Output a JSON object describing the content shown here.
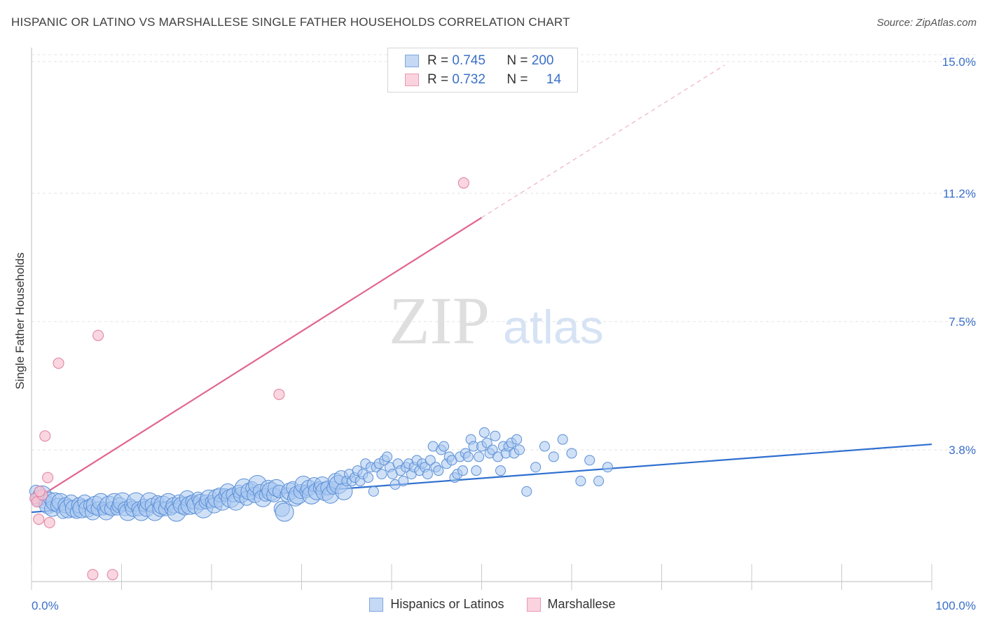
{
  "title": "HISPANIC OR LATINO VS MARSHALLESE SINGLE FATHER HOUSEHOLDS CORRELATION CHART",
  "source": "Source: ZipAtlas.com",
  "watermark": {
    "zip": "ZIP",
    "atlas": "atlas"
  },
  "colors": {
    "blue_fill": "#a9c8f0",
    "blue_stroke": "#5b8fd6",
    "blue_line": "#2f6fd0",
    "pink_fill": "#f6c4d3",
    "pink_stroke": "#e07f9f",
    "pink_line": "#e0658f",
    "tick_label": "#3a6fc9",
    "grid": "#e3e3e3"
  },
  "legend": {
    "rows": [
      {
        "r_label": "R =",
        "r_value": "0.745",
        "n_label": "N =",
        "n_value": "200"
      },
      {
        "r_label": "R =",
        "r_value": "0.732",
        "n_label": "N =",
        "n_value": "14"
      }
    ]
  },
  "bottom_legend": [
    "Hispanics or Latinos",
    "Marshallese"
  ],
  "chart_data": {
    "type": "scatter",
    "title": "HISPANIC OR LATINO VS MARSHALLESE SINGLE FATHER HOUSEHOLDS CORRELATION CHART",
    "xlabel": "",
    "ylabel": "Single Father Households",
    "xlim": [
      0,
      100
    ],
    "ylim": [
      0,
      15.2
    ],
    "x_tick_labels": [
      "0.0%",
      "100.0%"
    ],
    "y_ticks": [
      3.8,
      7.5,
      11.2,
      15.0
    ],
    "y_tick_labels": [
      "3.8%",
      "7.5%",
      "11.2%",
      "15.0%"
    ],
    "grid": true,
    "legend_position": "top-center",
    "series": [
      {
        "name": "Hispanics or Latinos",
        "R": 0.745,
        "N": 200,
        "trend": {
          "x": [
            0,
            100
          ],
          "y": [
            2.0,
            3.96
          ]
        },
        "points": [
          [
            0.5,
            2.6
          ],
          [
            0.8,
            2.4
          ],
          [
            1.2,
            2.5
          ],
          [
            1.5,
            2.3
          ],
          [
            1.8,
            2.2
          ],
          [
            2.0,
            2.4
          ],
          [
            2.3,
            2.1
          ],
          [
            2.6,
            2.3
          ],
          [
            2.9,
            2.2
          ],
          [
            3.2,
            2.3
          ],
          [
            3.5,
            2.0
          ],
          [
            3.8,
            2.2
          ],
          [
            4.1,
            2.1
          ],
          [
            4.4,
            2.3
          ],
          [
            4.7,
            2.1
          ],
          [
            5.0,
            2.0
          ],
          [
            5.3,
            2.2
          ],
          [
            5.6,
            2.1
          ],
          [
            5.9,
            2.3
          ],
          [
            6.2,
            2.1
          ],
          [
            6.5,
            2.2
          ],
          [
            6.8,
            2.0
          ],
          [
            7.1,
            2.2
          ],
          [
            7.4,
            2.1
          ],
          [
            7.7,
            2.3
          ],
          [
            8.0,
            2.1
          ],
          [
            8.3,
            2.0
          ],
          [
            8.6,
            2.2
          ],
          [
            8.9,
            2.1
          ],
          [
            9.2,
            2.3
          ],
          [
            9.5,
            2.1
          ],
          [
            9.8,
            2.2
          ],
          [
            10.1,
            2.3
          ],
          [
            10.4,
            2.1
          ],
          [
            10.7,
            2.0
          ],
          [
            11.0,
            2.2
          ],
          [
            11.3,
            2.1
          ],
          [
            11.6,
            2.3
          ],
          [
            11.9,
            2.1
          ],
          [
            12.2,
            2.0
          ],
          [
            12.5,
            2.2
          ],
          [
            12.8,
            2.1
          ],
          [
            13.1,
            2.3
          ],
          [
            13.4,
            2.2
          ],
          [
            13.7,
            2.0
          ],
          [
            14.0,
            2.3
          ],
          [
            14.3,
            2.1
          ],
          [
            14.6,
            2.2
          ],
          [
            14.9,
            2.1
          ],
          [
            15.2,
            2.3
          ],
          [
            15.5,
            2.1
          ],
          [
            15.8,
            2.2
          ],
          [
            16.1,
            2.0
          ],
          [
            16.4,
            2.3
          ],
          [
            16.7,
            2.2
          ],
          [
            17.0,
            2.1
          ],
          [
            17.3,
            2.4
          ],
          [
            17.6,
            2.2
          ],
          [
            17.9,
            2.3
          ],
          [
            18.2,
            2.2
          ],
          [
            18.5,
            2.4
          ],
          [
            18.8,
            2.3
          ],
          [
            19.1,
            2.1
          ],
          [
            19.4,
            2.3
          ],
          [
            19.7,
            2.4
          ],
          [
            20.0,
            2.3
          ],
          [
            20.3,
            2.2
          ],
          [
            20.6,
            2.4
          ],
          [
            20.9,
            2.5
          ],
          [
            21.2,
            2.3
          ],
          [
            21.5,
            2.5
          ],
          [
            21.8,
            2.6
          ],
          [
            22.1,
            2.4
          ],
          [
            22.4,
            2.5
          ],
          [
            22.7,
            2.3
          ],
          [
            23.0,
            2.6
          ],
          [
            23.3,
            2.5
          ],
          [
            23.6,
            2.7
          ],
          [
            23.9,
            2.4
          ],
          [
            24.2,
            2.6
          ],
          [
            24.5,
            2.7
          ],
          [
            24.8,
            2.5
          ],
          [
            25.1,
            2.8
          ],
          [
            25.4,
            2.6
          ],
          [
            25.7,
            2.4
          ],
          [
            26.0,
            2.5
          ],
          [
            26.3,
            2.7
          ],
          [
            26.6,
            2.6
          ],
          [
            26.9,
            2.5
          ],
          [
            27.2,
            2.7
          ],
          [
            27.5,
            2.6
          ],
          [
            27.8,
            2.1
          ],
          [
            28.1,
            2.0
          ],
          [
            28.4,
            2.5
          ],
          [
            28.7,
            2.6
          ],
          [
            29.0,
            2.7
          ],
          [
            29.3,
            2.4
          ],
          [
            29.6,
            2.5
          ],
          [
            29.9,
            2.6
          ],
          [
            30.2,
            2.8
          ],
          [
            30.5,
            2.6
          ],
          [
            30.8,
            2.7
          ],
          [
            31.1,
            2.5
          ],
          [
            31.4,
            2.8
          ],
          [
            31.7,
            2.6
          ],
          [
            32.0,
            2.7
          ],
          [
            32.3,
            2.8
          ],
          [
            32.6,
            2.6
          ],
          [
            32.9,
            2.7
          ],
          [
            33.2,
            2.5
          ],
          [
            33.5,
            2.7
          ],
          [
            33.8,
            2.9
          ],
          [
            34.1,
            2.8
          ],
          [
            34.4,
            3.0
          ],
          [
            34.7,
            2.6
          ],
          [
            35.0,
            2.9
          ],
          [
            35.3,
            3.1
          ],
          [
            35.6,
            2.9
          ],
          [
            35.9,
            3.0
          ],
          [
            36.2,
            3.2
          ],
          [
            36.5,
            2.9
          ],
          [
            36.8,
            3.1
          ],
          [
            37.1,
            3.4
          ],
          [
            37.4,
            3.0
          ],
          [
            37.7,
            3.3
          ],
          [
            38.0,
            2.6
          ],
          [
            38.3,
            3.3
          ],
          [
            38.6,
            3.4
          ],
          [
            38.9,
            3.1
          ],
          [
            39.2,
            3.5
          ],
          [
            39.5,
            3.6
          ],
          [
            39.8,
            3.3
          ],
          [
            40.1,
            3.1
          ],
          [
            40.4,
            2.8
          ],
          [
            40.7,
            3.4
          ],
          [
            41.0,
            3.2
          ],
          [
            41.3,
            2.9
          ],
          [
            41.6,
            3.3
          ],
          [
            41.9,
            3.4
          ],
          [
            42.2,
            3.1
          ],
          [
            42.5,
            3.3
          ],
          [
            42.8,
            3.5
          ],
          [
            43.1,
            3.2
          ],
          [
            43.4,
            3.4
          ],
          [
            43.7,
            3.3
          ],
          [
            44.0,
            3.1
          ],
          [
            44.3,
            3.5
          ],
          [
            44.6,
            3.9
          ],
          [
            44.9,
            3.3
          ],
          [
            45.2,
            3.2
          ],
          [
            45.5,
            3.8
          ],
          [
            45.8,
            3.9
          ],
          [
            46.1,
            3.4
          ],
          [
            46.4,
            3.6
          ],
          [
            46.7,
            3.5
          ],
          [
            47.0,
            3.0
          ],
          [
            47.3,
            3.1
          ],
          [
            47.6,
            3.6
          ],
          [
            47.9,
            3.2
          ],
          [
            48.2,
            3.7
          ],
          [
            48.5,
            3.6
          ],
          [
            48.8,
            4.1
          ],
          [
            49.1,
            3.9
          ],
          [
            49.4,
            3.2
          ],
          [
            49.7,
            3.6
          ],
          [
            50.0,
            3.9
          ],
          [
            50.3,
            4.3
          ],
          [
            50.6,
            4.0
          ],
          [
            50.9,
            3.7
          ],
          [
            51.2,
            3.8
          ],
          [
            51.5,
            4.2
          ],
          [
            51.8,
            3.6
          ],
          [
            52.1,
            3.2
          ],
          [
            52.4,
            3.9
          ],
          [
            52.7,
            3.7
          ],
          [
            53.0,
            3.9
          ],
          [
            53.3,
            4.0
          ],
          [
            53.6,
            3.7
          ],
          [
            53.9,
            4.1
          ],
          [
            54.2,
            3.8
          ],
          [
            55.0,
            2.6
          ],
          [
            56.0,
            3.3
          ],
          [
            57.0,
            3.9
          ],
          [
            58.0,
            3.6
          ],
          [
            59.0,
            4.1
          ],
          [
            60.0,
            3.7
          ],
          [
            61.0,
            2.9
          ],
          [
            62.0,
            3.5
          ],
          [
            63.0,
            2.9
          ],
          [
            64.0,
            3.3
          ]
        ]
      },
      {
        "name": "Marshallese",
        "R": 0.732,
        "N": 14,
        "trend": {
          "x": [
            0,
            50
          ],
          "y": [
            2.3,
            10.5
          ],
          "dashed_to": {
            "x": 77,
            "y": 14.9
          }
        },
        "points": [
          [
            0.4,
            2.4
          ],
          [
            0.6,
            2.3
          ],
          [
            0.8,
            1.8
          ],
          [
            1.2,
            2.5
          ],
          [
            1.5,
            4.2
          ],
          [
            1.8,
            3.0
          ],
          [
            2.0,
            1.7
          ],
          [
            3.0,
            6.3
          ],
          [
            6.8,
            0.2
          ],
          [
            7.4,
            7.1
          ],
          [
            9.0,
            0.2
          ],
          [
            27.5,
            5.4
          ],
          [
            48.0,
            11.5
          ],
          [
            0.9,
            2.6
          ]
        ]
      }
    ]
  }
}
